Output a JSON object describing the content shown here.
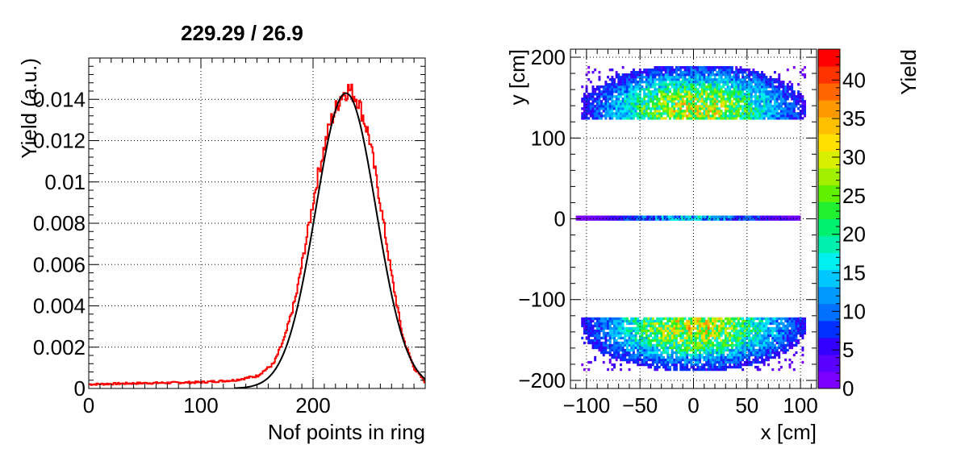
{
  "chart_data": [
    {
      "type": "histogram",
      "title": "229.29 / 26.9",
      "xlabel": "Nof points in ring",
      "ylabel": "Yield (a.u.)",
      "xlim": [
        0,
        300
      ],
      "ylim": [
        0,
        0.016
      ],
      "xticks": [
        "0",
        "100",
        "200"
      ],
      "xtick_values": [
        0,
        100,
        200
      ],
      "yticks": [
        "0",
        "0.002",
        "0.004",
        "0.006",
        "0.008",
        "0.01",
        "0.012",
        "0.014"
      ],
      "ytick_values": [
        0,
        0.002,
        0.004,
        0.006,
        0.008,
        0.01,
        0.012,
        0.014
      ],
      "grid": true,
      "series": [
        {
          "kind": "histogram",
          "color": "#ff0000",
          "bin_width": 1,
          "profile": [
            [
              0,
              0.0002
            ],
            [
              40,
              0.00025
            ],
            [
              100,
              0.0003
            ],
            [
              130,
              0.0004
            ],
            [
              150,
              0.0006
            ],
            [
              165,
              0.0012
            ],
            [
              175,
              0.0025
            ],
            [
              185,
              0.0045
            ],
            [
              195,
              0.0075
            ],
            [
              205,
              0.0105
            ],
            [
              215,
              0.0128
            ],
            [
              225,
              0.0142
            ],
            [
              232,
              0.0145
            ],
            [
              240,
              0.014
            ],
            [
              250,
              0.0122
            ],
            [
              260,
              0.009
            ],
            [
              270,
              0.0055
            ],
            [
              280,
              0.0025
            ],
            [
              290,
              0.001
            ],
            [
              300,
              0.0003
            ]
          ]
        },
        {
          "kind": "gaussian-fit",
          "color": "#000000",
          "mean": 229.29,
          "sigma": 26.9,
          "amplitude": 0.0143
        }
      ]
    },
    {
      "type": "heatmap",
      "xlabel": "x [cm]",
      "ylabel": "y [cm]",
      "zlabel": "Yield",
      "xlim": [
        -115,
        115
      ],
      "ylim": [
        -210,
        210
      ],
      "zlim": [
        0,
        44
      ],
      "xticks": [
        "−100",
        "−50",
        "0",
        "50",
        "100"
      ],
      "xtick_values": [
        -100,
        -50,
        0,
        50,
        100
      ],
      "yticks": [
        "−200",
        "−100",
        "0",
        "100",
        "200"
      ],
      "ytick_values": [
        -200,
        -100,
        0,
        100,
        200
      ],
      "zticks": [
        "0",
        "5",
        "10",
        "15",
        "20",
        "25",
        "30",
        "35",
        "40"
      ],
      "ztick_values": [
        0,
        5,
        10,
        15,
        20,
        25,
        30,
        35,
        40
      ],
      "grid": true,
      "regions": [
        {
          "name": "upper-band",
          "x_range": [
            -105,
            105
          ],
          "y_range": [
            123,
            188
          ],
          "peak": 30,
          "center_x": 0,
          "center_y": 135
        },
        {
          "name": "middle-band",
          "x_range": [
            -110,
            100
          ],
          "y_range": [
            -2,
            2
          ],
          "peak": 18,
          "center_x": 0,
          "center_y": 0
        },
        {
          "name": "lower-band",
          "x_range": [
            -105,
            105
          ],
          "y_range": [
            -188,
            -123
          ],
          "peak": 30,
          "center_x": 0,
          "center_y": -135
        }
      ],
      "colormap": [
        "#7b00ff",
        "#5a00ff",
        "#3300ff",
        "#0030ff",
        "#0070ff",
        "#0099ff",
        "#00c8ff",
        "#00f0f0",
        "#00f0b0",
        "#00f070",
        "#20f030",
        "#60f000",
        "#a0f000",
        "#d8f000",
        "#ffe000",
        "#ffc000",
        "#ff9900",
        "#ff6600",
        "#ff3300",
        "#ff0000"
      ]
    }
  ]
}
